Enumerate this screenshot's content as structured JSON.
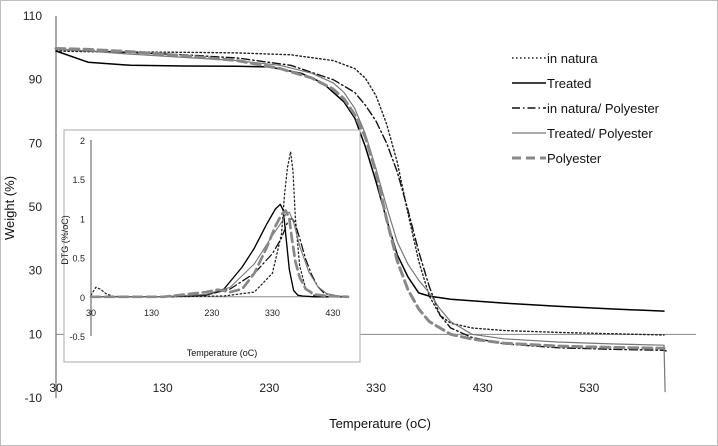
{
  "chart_data": [
    {
      "type": "line",
      "title": "",
      "xlabel": "Temperature (oC)",
      "ylabel": "Weight (%)",
      "xlim": [
        30,
        630
      ],
      "ylim": [
        -10,
        110
      ],
      "xticks": [
        "30",
        "130",
        "230",
        "330",
        "430",
        "530"
      ],
      "yticks": [
        "110",
        "90",
        "70",
        "50",
        "30",
        "10",
        "-10"
      ],
      "legend": {
        "position": "top-right",
        "entries": [
          "in natura",
          "Treated",
          "in natura/ Polyester",
          "Treated/ Polyester",
          "Polyester"
        ]
      },
      "series": [
        {
          "name": "in natura",
          "color": "#222222",
          "x": [
            30,
            60,
            100,
            150,
            200,
            250,
            290,
            310,
            320,
            330,
            340,
            350,
            360,
            370,
            380,
            390,
            400,
            420,
            450,
            500,
            550,
            600
          ],
          "y": [
            99,
            98.8,
            98.7,
            98.6,
            98.4,
            97.8,
            96,
            93.5,
            90.5,
            85,
            76,
            64,
            48,
            33,
            22,
            16,
            13.5,
            12,
            11.2,
            10.6,
            10.2,
            9.8
          ]
        },
        {
          "name": "Treated",
          "color": "#000000",
          "x": [
            30,
            60,
            100,
            150,
            200,
            230,
            260,
            280,
            300,
            310,
            320,
            330,
            340,
            350,
            360,
            370,
            375,
            380,
            400,
            450,
            500,
            550,
            600
          ],
          "y": [
            99,
            95.5,
            94.5,
            94.3,
            94.2,
            94,
            92,
            89,
            83,
            78,
            69,
            58,
            46,
            35,
            28,
            23,
            22.5,
            22,
            21,
            19.8,
            18.8,
            18,
            17.3
          ]
        },
        {
          "name": "in natura/ Polyester",
          "color": "#111111",
          "x": [
            30,
            60,
            100,
            150,
            200,
            250,
            290,
            310,
            320,
            330,
            340,
            350,
            360,
            370,
            380,
            390,
            400,
            420,
            450,
            500,
            550,
            600,
            602
          ],
          "y": [
            99.5,
            99,
            98.5,
            97.8,
            96.8,
            94.5,
            90,
            86,
            82,
            77,
            70,
            61,
            49,
            36,
            25,
            16,
            12,
            9,
            7,
            5.8,
            5.3,
            5,
            4.8
          ]
        },
        {
          "name": "Treated/ Polyester",
          "color": "#777777",
          "x": [
            30,
            60,
            100,
            150,
            200,
            240,
            270,
            290,
            300,
            310,
            320,
            330,
            340,
            350,
            360,
            370,
            380,
            390,
            400,
            420,
            450,
            500,
            550,
            600,
            601
          ],
          "y": [
            99.5,
            99,
            98,
            97,
            96,
            94.5,
            92,
            89,
            86,
            81,
            73,
            62,
            50,
            39,
            32,
            27,
            23,
            18,
            14,
            10,
            8.6,
            7.6,
            7,
            6.6,
            -8
          ]
        },
        {
          "name": "Polyester",
          "color": "#888888",
          "x": [
            30,
            60,
            100,
            150,
            200,
            240,
            270,
            290,
            300,
            310,
            320,
            330,
            340,
            350,
            360,
            370,
            380,
            400,
            420,
            450,
            500,
            550,
            600
          ],
          "y": [
            99.8,
            99.5,
            98.8,
            97.5,
            96,
            93.5,
            90.5,
            87,
            84,
            79,
            72,
            61,
            46,
            33,
            24,
            18,
            14,
            10,
            8.5,
            7.2,
            6.3,
            5.9,
            5.6
          ]
        }
      ]
    },
    {
      "type": "line",
      "title": "",
      "xlabel": "Temperature (oC)",
      "ylabel": "DTG (%/oC)",
      "xlim": [
        30,
        455
      ],
      "ylim": [
        -0.5,
        2
      ],
      "xticks": [
        "30",
        "130",
        "230",
        "330",
        "430"
      ],
      "yticks": [
        "2",
        "1.5",
        "1",
        "0.5",
        "0",
        "-0.5"
      ],
      "series": [
        {
          "name": "in natura",
          "color": "#222222",
          "x": [
            30,
            38,
            45,
            55,
            65,
            80,
            150,
            250,
            300,
            330,
            345,
            350,
            355,
            360,
            364,
            368,
            375,
            385,
            400,
            455
          ],
          "y": [
            0.02,
            0.12,
            0.1,
            0.04,
            0.01,
            0,
            0,
            0.01,
            0.06,
            0.3,
            0.8,
            1.3,
            1.65,
            1.85,
            1.6,
            1.0,
            0.4,
            0.1,
            0.01,
            0
          ]
        },
        {
          "name": "Treated",
          "color": "#000000",
          "x": [
            30,
            80,
            150,
            220,
            250,
            280,
            300,
            320,
            335,
            343,
            348,
            352,
            358,
            365,
            372,
            380,
            400,
            455
          ],
          "y": [
            0,
            0,
            0,
            0.02,
            0.1,
            0.38,
            0.62,
            0.92,
            1.12,
            1.18,
            1.1,
            0.8,
            0.35,
            0.08,
            0.02,
            0.01,
            0,
            0
          ]
        },
        {
          "name": "in natura/ Polyester",
          "color": "#111111",
          "x": [
            30,
            80,
            150,
            220,
            260,
            300,
            330,
            345,
            355,
            362,
            367,
            375,
            385,
            395,
            405,
            415,
            430,
            455
          ],
          "y": [
            0,
            0,
            0,
            0.02,
            0.1,
            0.3,
            0.55,
            0.75,
            0.95,
            1.0,
            0.95,
            0.75,
            0.48,
            0.28,
            0.13,
            0.05,
            0.01,
            0
          ]
        },
        {
          "name": "Treated/ Polyester",
          "color": "#777777",
          "x": [
            30,
            80,
            150,
            220,
            260,
            300,
            330,
            345,
            352,
            358,
            365,
            375,
            390,
            405,
            420,
            440,
            455
          ],
          "y": [
            0,
            0,
            0,
            0.03,
            0.12,
            0.42,
            0.78,
            0.95,
            1.05,
            1.08,
            0.95,
            0.65,
            0.32,
            0.13,
            0.04,
            0.01,
            0
          ]
        },
        {
          "name": "Polyester",
          "color": "#888888",
          "x": [
            30,
            80,
            150,
            220,
            240,
            260,
            280,
            300,
            320,
            335,
            345,
            352,
            358,
            362,
            368,
            375,
            385,
            400,
            420,
            455
          ],
          "y": [
            0,
            0,
            0,
            0.06,
            0.09,
            0.06,
            0.1,
            0.3,
            0.62,
            0.9,
            1.05,
            1.1,
            1.0,
            0.75,
            0.45,
            0.25,
            0.1,
            0.03,
            0.01,
            0
          ]
        }
      ]
    }
  ]
}
